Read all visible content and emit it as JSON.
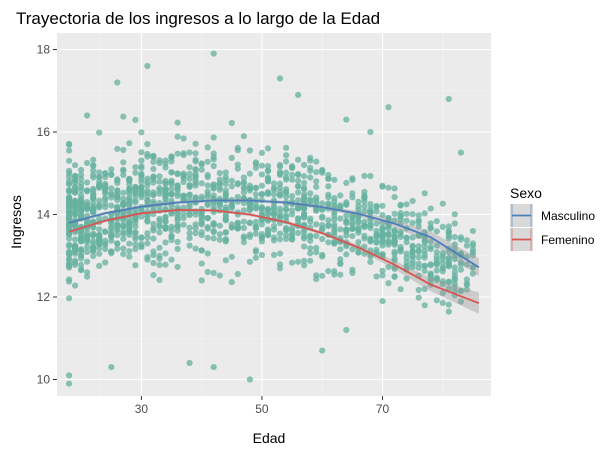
{
  "chart_data": {
    "type": "scatter",
    "title": "Trayectoria de los ingresos a lo largo de la Edad",
    "xlabel": "Edad",
    "ylabel": "Ingresos",
    "xlim": [
      16,
      88
    ],
    "ylim": [
      9.6,
      18.4
    ],
    "x_ticks": [
      30,
      50,
      70
    ],
    "y_ticks": [
      10,
      12,
      14,
      16,
      18
    ],
    "grid": true,
    "legend": {
      "title": "Sexo",
      "position": "right"
    },
    "scatter": {
      "color": "#66b2a0",
      "x_range": [
        18,
        85
      ],
      "y_center": 14.2,
      "note_points": [
        [
          18,
          9.9
        ],
        [
          18,
          10.1
        ],
        [
          25,
          10.3
        ],
        [
          42,
          10.3
        ],
        [
          21,
          16.4
        ],
        [
          26,
          17.2
        ],
        [
          31,
          17.6
        ],
        [
          42,
          17.9
        ],
        [
          53,
          17.3
        ],
        [
          56,
          16.9
        ],
        [
          64,
          16.3
        ],
        [
          68,
          16.0
        ],
        [
          71,
          16.6
        ],
        [
          81,
          16.8
        ],
        [
          83,
          15.5
        ],
        [
          85,
          13.6
        ],
        [
          85,
          13.3
        ],
        [
          80,
          13.7
        ],
        [
          76,
          13.5
        ],
        [
          72,
          12.5
        ],
        [
          64,
          11.2
        ],
        [
          60,
          10.7
        ],
        [
          70,
          11.9
        ],
        [
          48,
          10.0
        ],
        [
          38,
          10.4
        ]
      ]
    },
    "series": [
      {
        "name": "Masculino",
        "color": "#4a7fbe",
        "x": [
          18,
          24,
          30,
          36,
          42,
          48,
          54,
          60,
          66,
          72,
          78,
          86
        ],
        "y": [
          13.8,
          14.03,
          14.19,
          14.29,
          14.34,
          14.34,
          14.29,
          14.18,
          14.02,
          13.78,
          13.45,
          12.72
        ]
      },
      {
        "name": "Femenino",
        "color": "#d9534f",
        "x": [
          18,
          24,
          30,
          36,
          42,
          48,
          54,
          60,
          66,
          72,
          78,
          86
        ],
        "y": [
          13.58,
          13.85,
          14.03,
          14.11,
          14.1,
          14.0,
          13.81,
          13.55,
          13.2,
          12.78,
          12.3,
          11.85
        ]
      }
    ]
  }
}
